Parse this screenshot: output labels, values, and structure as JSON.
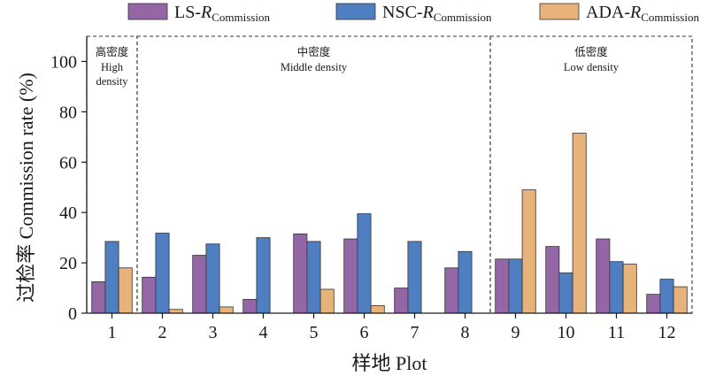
{
  "chart_data": {
    "type": "bar",
    "xlabel": "样地 Plot",
    "ylabel": "过检率 Commission rate (%)",
    "ylim": [
      0,
      110
    ],
    "yticks": [
      0,
      20,
      40,
      60,
      80,
      100
    ],
    "categories": [
      "1",
      "2",
      "3",
      "4",
      "5",
      "6",
      "7",
      "8",
      "9",
      "10",
      "11",
      "12"
    ],
    "series": [
      {
        "name": "LS-R",
        "name_base": "LS-",
        "name_italic": "R",
        "name_sub": "Commission",
        "color": "#9566a6",
        "values": [
          12.5,
          14.3,
          23.0,
          5.5,
          31.5,
          29.5,
          10.0,
          18.0,
          21.5,
          26.5,
          29.5,
          7.5
        ]
      },
      {
        "name": "NSC-R",
        "name_base": "NSC-",
        "name_italic": "R",
        "name_sub": "Commission",
        "color": "#4f7fc0",
        "values": [
          28.5,
          31.8,
          27.5,
          30.0,
          28.5,
          39.5,
          28.5,
          24.5,
          21.5,
          16.0,
          20.5,
          13.5
        ]
      },
      {
        "name": "ADA-R",
        "name_base": "ADA-",
        "name_italic": "R",
        "name_sub": "Commission",
        "color": "#e8b27b",
        "values": [
          18.0,
          1.5,
          2.5,
          0,
          9.5,
          3.0,
          0,
          0,
          49.0,
          71.5,
          19.5,
          10.5
        ]
      }
    ],
    "legend_position": "top",
    "regions": [
      {
        "title_zh": "高密度",
        "title_en_lines": [
          "High",
          "density"
        ],
        "start_index": 0,
        "end_index": 0
      },
      {
        "title_zh": "中密度",
        "title_en_lines": [
          "Middle density"
        ],
        "start_index": 1,
        "end_index": 7
      },
      {
        "title_zh": "低密度",
        "title_en_lines": [
          "Low density"
        ],
        "start_index": 8,
        "end_index": 11
      }
    ]
  }
}
